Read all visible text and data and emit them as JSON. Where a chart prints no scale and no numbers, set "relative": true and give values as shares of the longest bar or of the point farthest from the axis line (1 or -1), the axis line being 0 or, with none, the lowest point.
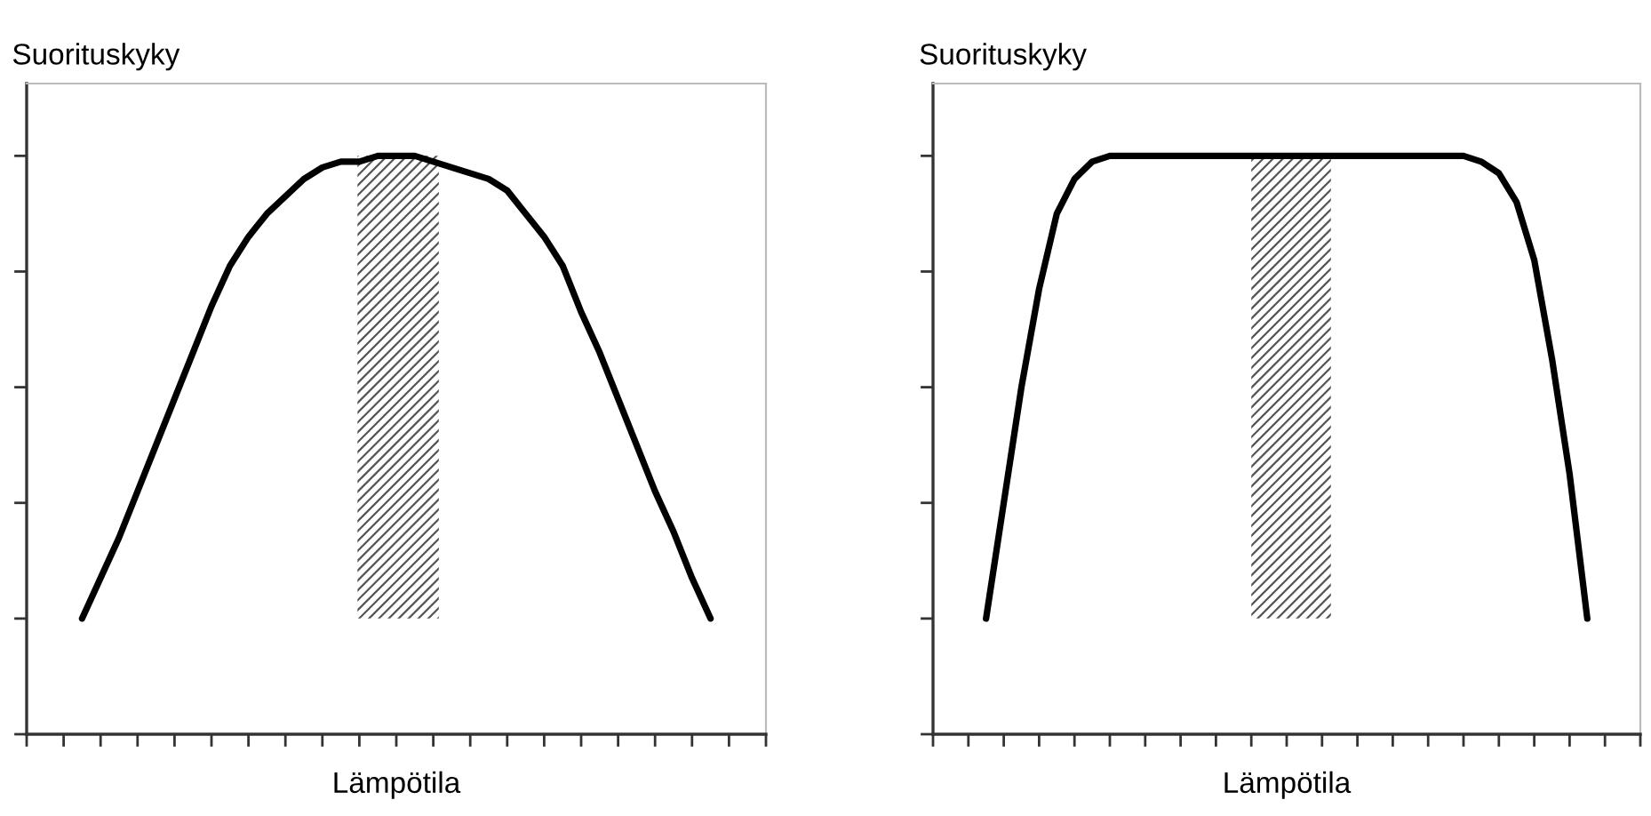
{
  "chart_data": [
    {
      "type": "line",
      "relative": true,
      "ylabel": "Suorituskyky",
      "xlabel": "Lämpötila",
      "tick_labels": false,
      "categories": [
        null,
        null,
        null,
        null,
        null,
        null,
        null,
        null,
        null,
        null,
        null,
        null,
        null,
        null,
        null,
        null,
        null,
        null,
        null,
        null,
        null,
        null,
        null,
        null,
        null,
        null,
        null,
        null,
        null,
        null,
        null,
        null,
        null,
        null,
        null,
        null,
        null,
        null,
        null,
        null,
        null
      ],
      "series": [
        {
          "color": "#000000",
          "values": [
            null,
            null,
            null,
            0.2,
            0.27,
            0.34,
            0.42,
            0.5,
            0.58,
            0.66,
            0.74,
            0.81,
            0.86,
            0.9,
            0.93,
            0.96,
            0.98,
            0.99,
            0.99,
            1,
            1,
            1,
            0.99,
            0.98,
            0.97,
            0.96,
            0.94,
            0.9,
            0.86,
            0.81,
            0.73,
            0.66,
            0.58,
            0.5,
            0.42,
            0.35,
            0.27,
            0.2,
            null,
            null,
            null
          ]
        }
      ]
    },
    {
      "type": "line",
      "relative": true,
      "ylabel": "Suorituskyky",
      "xlabel": "Lämpötila",
      "tick_labels": false,
      "categories": [
        null,
        null,
        null,
        null,
        null,
        null,
        null,
        null,
        null,
        null,
        null,
        null,
        null,
        null,
        null,
        null,
        null,
        null,
        null,
        null,
        null,
        null,
        null,
        null,
        null,
        null,
        null,
        null,
        null,
        null,
        null,
        null,
        null,
        null,
        null,
        null,
        null,
        null,
        null,
        null,
        null
      ],
      "series": [
        {
          "color": "#000000",
          "values": [
            null,
            null,
            null,
            0.2,
            0.4,
            0.6,
            0.77,
            0.9,
            0.96,
            0.99,
            1,
            1,
            1,
            1,
            1,
            1,
            1,
            1,
            1,
            1,
            1,
            1,
            1,
            1,
            1,
            1,
            1,
            1,
            1,
            1,
            1,
            0.99,
            0.97,
            0.92,
            0.82,
            0.65,
            0.45,
            0.2,
            null,
            null,
            null
          ]
        }
      ]
    }
  ]
}
